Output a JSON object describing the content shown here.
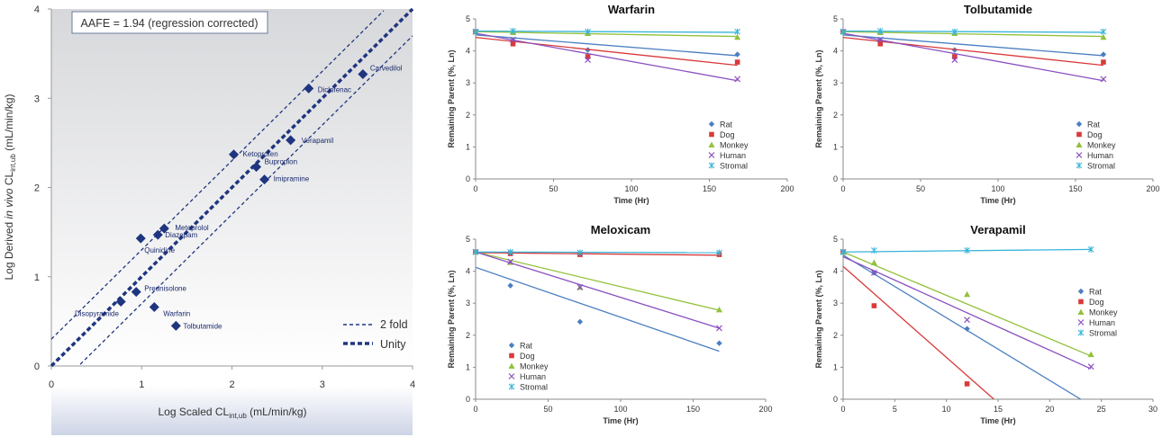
{
  "chart_data": [
    {
      "type": "scatter",
      "annotation": "AAFE = 1.94 (regression corrected)",
      "xlim": [
        0,
        4
      ],
      "ylim": [
        0,
        4
      ],
      "xticks": [
        "0",
        "1",
        "2",
        "3",
        "4"
      ],
      "yticks": [
        "0",
        "1",
        "2",
        "3",
        "4"
      ],
      "xlabel_pre": "Log Scaled CL",
      "xlabel_sub": "int,ub",
      "xlabel_post": " (mL/min/kg)",
      "ylabel_pre": "Log Derived ",
      "ylabel_it": "in vivo",
      "ylabel_mid": " CL",
      "ylabel_sub": "int,ub",
      "ylabel_post": " (mL/min/kg)",
      "legend": [
        {
          "label": "2 fold",
          "style": "thin-dashed"
        },
        {
          "label": "Unity",
          "style": "thick-dashed"
        }
      ],
      "lines": {
        "unity_offset": 0,
        "fold_offset": 0.301
      },
      "points": [
        {
          "name": "Carvedilol",
          "x": 3.45,
          "y": 3.27
        },
        {
          "name": "Diclofenac",
          "x": 2.85,
          "y": 3.11
        },
        {
          "name": "Verapamil",
          "x": 2.65,
          "y": 2.53
        },
        {
          "name": "Ketoprofen",
          "x": 2.02,
          "y": 2.37
        },
        {
          "name": "Bupropion",
          "x": 2.27,
          "y": 2.23
        },
        {
          "name": "Imipramine",
          "x": 2.36,
          "y": 2.09
        },
        {
          "name": "Metoprolol",
          "x": 1.25,
          "y": 1.54
        },
        {
          "name": "Diazepam",
          "x": 1.18,
          "y": 1.47
        },
        {
          "name": "Quinidine",
          "x": 0.99,
          "y": 1.43
        },
        {
          "name": "Prednisolone",
          "x": 0.94,
          "y": 0.83
        },
        {
          "name": "Disopyramide",
          "x": 0.77,
          "y": 0.72
        },
        {
          "name": "Warfarin",
          "x": 1.14,
          "y": 0.66
        },
        {
          "name": "Tolbutamide",
          "x": 1.38,
          "y": 0.45
        }
      ]
    },
    {
      "type": "line",
      "title": "Warfarin",
      "xlabel": "Time (Hr)",
      "ylabel": "Remaining Parent (%, Ln)",
      "xlim": [
        0,
        200
      ],
      "ylim": [
        0,
        5
      ],
      "xticks": [
        "0",
        "50",
        "100",
        "150",
        "200"
      ],
      "yticks": [
        "0",
        "1",
        "2",
        "3",
        "4",
        "5"
      ],
      "series": [
        {
          "name": "Rat",
          "color": "#4a7fc1",
          "marker": "diamond",
          "points": [
            [
              0,
              4.6
            ],
            [
              24,
              4.33
            ],
            [
              72,
              4.03
            ],
            [
              168,
              3.89
            ]
          ],
          "fit": [
            [
              0,
              4.5
            ],
            [
              168,
              3.85
            ]
          ]
        },
        {
          "name": "Dog",
          "color": "#d93a3a",
          "marker": "square",
          "points": [
            [
              0,
              4.6
            ],
            [
              24,
              4.22
            ],
            [
              72,
              3.82
            ],
            [
              168,
              3.65
            ]
          ],
          "fit": [
            [
              0,
              4.42
            ],
            [
              168,
              3.55
            ]
          ]
        },
        {
          "name": "Monkey",
          "color": "#92c13a",
          "marker": "triangle",
          "points": [
            [
              0,
              4.6
            ],
            [
              24,
              4.58
            ],
            [
              72,
              4.55
            ],
            [
              168,
              4.43
            ]
          ],
          "fit": [
            [
              0,
              4.6
            ],
            [
              168,
              4.45
            ]
          ]
        },
        {
          "name": "Human",
          "color": "#8a4fc1",
          "marker": "x",
          "points": [
            [
              0,
              4.6
            ],
            [
              24,
              4.35
            ],
            [
              72,
              3.72
            ],
            [
              168,
              3.12
            ]
          ],
          "fit": [
            [
              0,
              4.55
            ],
            [
              168,
              3.07
            ]
          ]
        },
        {
          "name": "Stromal",
          "color": "#38b4d9",
          "marker": "star",
          "points": [
            [
              0,
              4.6
            ],
            [
              24,
              4.62
            ],
            [
              72,
              4.6
            ],
            [
              168,
              4.6
            ]
          ],
          "fit": [
            [
              0,
              4.62
            ],
            [
              168,
              4.58
            ]
          ]
        }
      ]
    },
    {
      "type": "line",
      "title": "Tolbutamide",
      "xlabel": "Time (Hr)",
      "ylabel": "Remaining Parent (%, Ln)",
      "xlim": [
        0,
        200
      ],
      "ylim": [
        0,
        5
      ],
      "xticks": [
        "0",
        "50",
        "100",
        "150",
        "200"
      ],
      "yticks": [
        "0",
        "1",
        "2",
        "3",
        "4",
        "5"
      ],
      "series": [
        {
          "name": "Rat",
          "color": "#4a7fc1",
          "marker": "diamond",
          "points": [
            [
              0,
              4.6
            ],
            [
              24,
              4.33
            ],
            [
              72,
              4.03
            ],
            [
              168,
              3.89
            ]
          ],
          "fit": [
            [
              0,
              4.5
            ],
            [
              168,
              3.85
            ]
          ]
        },
        {
          "name": "Dog",
          "color": "#d93a3a",
          "marker": "square",
          "points": [
            [
              0,
              4.6
            ],
            [
              24,
              4.22
            ],
            [
              72,
              3.82
            ],
            [
              168,
              3.65
            ]
          ],
          "fit": [
            [
              0,
              4.42
            ],
            [
              168,
              3.55
            ]
          ]
        },
        {
          "name": "Monkey",
          "color": "#92c13a",
          "marker": "triangle",
          "points": [
            [
              0,
              4.6
            ],
            [
              24,
              4.58
            ],
            [
              72,
              4.55
            ],
            [
              168,
              4.43
            ]
          ],
          "fit": [
            [
              0,
              4.6
            ],
            [
              168,
              4.45
            ]
          ]
        },
        {
          "name": "Human",
          "color": "#8a4fc1",
          "marker": "x",
          "points": [
            [
              0,
              4.6
            ],
            [
              24,
              4.35
            ],
            [
              72,
              3.72
            ],
            [
              168,
              3.12
            ]
          ],
          "fit": [
            [
              0,
              4.55
            ],
            [
              168,
              3.07
            ]
          ]
        },
        {
          "name": "Stromal",
          "color": "#38b4d9",
          "marker": "star",
          "points": [
            [
              0,
              4.6
            ],
            [
              24,
              4.62
            ],
            [
              72,
              4.6
            ],
            [
              168,
              4.6
            ]
          ],
          "fit": [
            [
              0,
              4.62
            ],
            [
              168,
              4.58
            ]
          ]
        }
      ]
    },
    {
      "type": "line",
      "title": "Meloxicam",
      "xlabel": "Time (Hr)",
      "ylabel": "Remaining Parent (%, Ln)",
      "xlim": [
        0,
        200
      ],
      "ylim": [
        0,
        5
      ],
      "xticks": [
        "0",
        "50",
        "100",
        "150",
        "200"
      ],
      "yticks": [
        "0",
        "1",
        "2",
        "3",
        "4",
        "5"
      ],
      "series": [
        {
          "name": "Rat",
          "color": "#4a7fc1",
          "marker": "diamond",
          "points": [
            [
              0,
              4.6
            ],
            [
              24,
              3.55
            ],
            [
              72,
              2.42
            ],
            [
              168,
              1.75
            ]
          ],
          "fit": [
            [
              0,
              4.12
            ],
            [
              168,
              1.5
            ]
          ]
        },
        {
          "name": "Dog",
          "color": "#d93a3a",
          "marker": "square",
          "points": [
            [
              0,
              4.6
            ],
            [
              24,
              4.55
            ],
            [
              72,
              4.52
            ],
            [
              168,
              4.52
            ]
          ],
          "fit": [
            [
              0,
              4.58
            ],
            [
              168,
              4.5
            ]
          ]
        },
        {
          "name": "Monkey",
          "color": "#92c13a",
          "marker": "triangle",
          "points": [
            [
              0,
              4.6
            ],
            [
              24,
              4.28
            ],
            [
              72,
              3.5
            ],
            [
              168,
              2.8
            ]
          ],
          "fit": [
            [
              0,
              4.6
            ],
            [
              168,
              2.78
            ]
          ]
        },
        {
          "name": "Human",
          "color": "#8a4fc1",
          "marker": "x",
          "points": [
            [
              0,
              4.6
            ],
            [
              24,
              4.3
            ],
            [
              72,
              3.5
            ],
            [
              168,
              2.22
            ]
          ],
          "fit": [
            [
              0,
              4.6
            ],
            [
              168,
              2.22
            ]
          ]
        },
        {
          "name": "Stromal",
          "color": "#38b4d9",
          "marker": "star",
          "points": [
            [
              0,
              4.6
            ],
            [
              24,
              4.6
            ],
            [
              72,
              4.58
            ],
            [
              168,
              4.58
            ]
          ],
          "fit": [
            [
              0,
              4.6
            ],
            [
              168,
              4.58
            ]
          ]
        }
      ]
    },
    {
      "type": "line",
      "title": "Verapamil",
      "xlabel": "Time (Hr)",
      "ylabel": "Remaining Parent (%, Ln)",
      "xlim": [
        0,
        30
      ],
      "ylim": [
        0,
        5
      ],
      "xticks": [
        "0",
        "5",
        "10",
        "15",
        "20",
        "25",
        "30"
      ],
      "yticks": [
        "0",
        "1",
        "2",
        "3",
        "4",
        "5"
      ],
      "series": [
        {
          "name": "Rat",
          "color": "#4a7fc1",
          "marker": "diamond",
          "points": [
            [
              0,
              4.6
            ],
            [
              3,
              3.95
            ],
            [
              12,
              2.2
            ]
          ],
          "fit": [
            [
              0,
              4.5
            ],
            [
              23,
              0
            ]
          ]
        },
        {
          "name": "Dog",
          "color": "#d93a3a",
          "marker": "square",
          "points": [
            [
              0,
              4.6
            ],
            [
              3,
              2.92
            ],
            [
              12,
              0.48
            ]
          ],
          "fit": [
            [
              0,
              4.15
            ],
            [
              14.6,
              0
            ]
          ]
        },
        {
          "name": "Monkey",
          "color": "#92c13a",
          "marker": "triangle",
          "points": [
            [
              0,
              4.6
            ],
            [
              3,
              4.27
            ],
            [
              12,
              3.28
            ],
            [
              24,
              1.4
            ]
          ],
          "fit": [
            [
              0,
              4.6
            ],
            [
              24,
              1.35
            ]
          ]
        },
        {
          "name": "Human",
          "color": "#8a4fc1",
          "marker": "x",
          "points": [
            [
              0,
              4.6
            ],
            [
              3,
              3.95
            ],
            [
              12,
              2.48
            ],
            [
              24,
              1.02
            ]
          ],
          "fit": [
            [
              0,
              4.45
            ],
            [
              24,
              0.95
            ]
          ]
        },
        {
          "name": "Stromal",
          "color": "#38b4d9",
          "marker": "star",
          "points": [
            [
              0,
              4.6
            ],
            [
              3,
              4.65
            ],
            [
              12,
              4.65
            ],
            [
              24,
              4.68
            ]
          ],
          "fit": [
            [
              0,
              4.6
            ],
            [
              24,
              4.68
            ]
          ]
        }
      ]
    }
  ]
}
